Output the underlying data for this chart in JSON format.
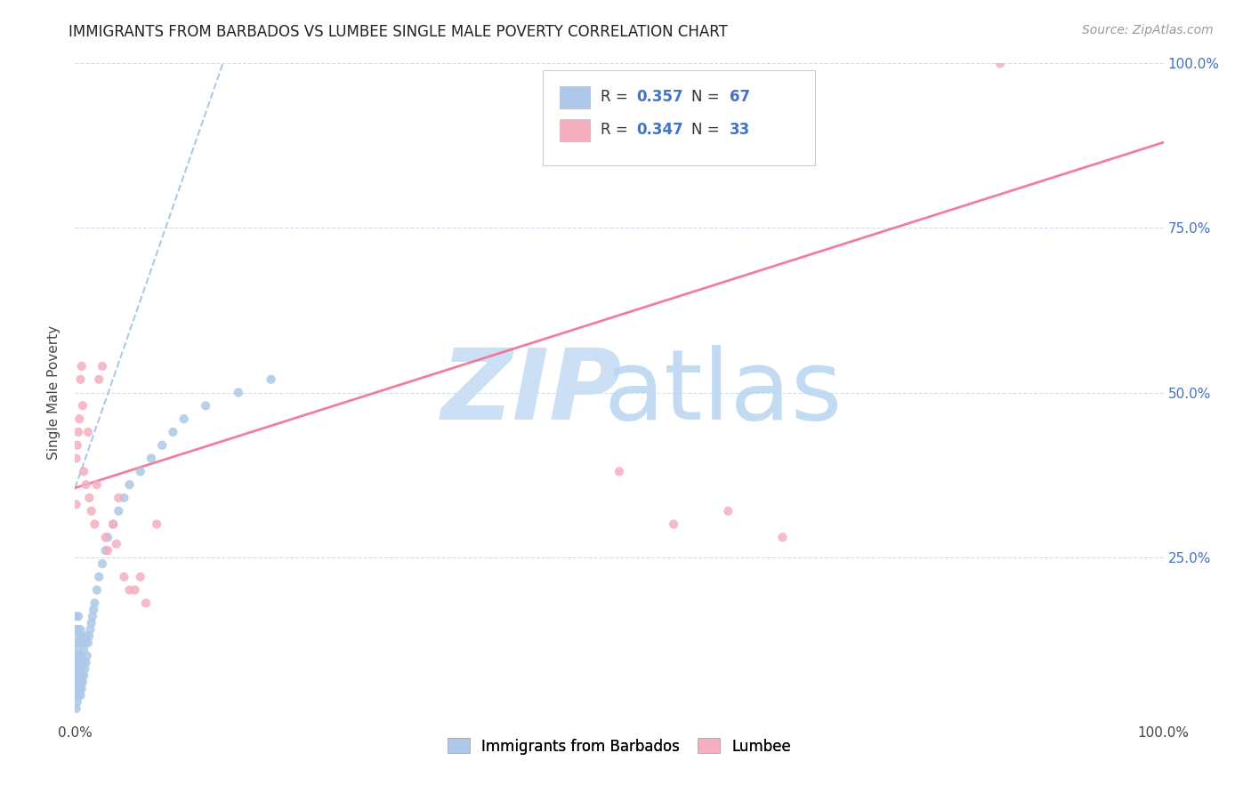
{
  "title": "IMMIGRANTS FROM BARBADOS VS LUMBEE SINGLE MALE POVERTY CORRELATION CHART",
  "source": "Source: ZipAtlas.com",
  "ylabel": "Single Male Poverty",
  "legend_blue_label": "Immigrants from Barbados",
  "legend_pink_label": "Lumbee",
  "R_blue": 0.357,
  "N_blue": 67,
  "R_pink": 0.347,
  "N_pink": 33,
  "blue_color": "#adc8e8",
  "pink_color": "#f5afc0",
  "blue_line_color": "#90b8de",
  "pink_line_color": "#f07090",
  "watermark_zip_color": "#cce0f5",
  "watermark_atlas_color": "#b8d5f0",
  "blue_points_x": [
    0.001,
    0.001,
    0.001,
    0.001,
    0.001,
    0.001,
    0.001,
    0.001,
    0.002,
    0.002,
    0.002,
    0.002,
    0.002,
    0.002,
    0.003,
    0.003,
    0.003,
    0.003,
    0.003,
    0.003,
    0.004,
    0.004,
    0.004,
    0.004,
    0.005,
    0.005,
    0.005,
    0.005,
    0.005,
    0.006,
    0.006,
    0.006,
    0.006,
    0.007,
    0.007,
    0.007,
    0.008,
    0.008,
    0.009,
    0.009,
    0.01,
    0.01,
    0.011,
    0.012,
    0.013,
    0.014,
    0.015,
    0.016,
    0.017,
    0.018,
    0.02,
    0.022,
    0.025,
    0.028,
    0.03,
    0.035,
    0.04,
    0.045,
    0.05,
    0.06,
    0.07,
    0.08,
    0.09,
    0.1,
    0.12,
    0.15,
    0.18
  ],
  "blue_points_y": [
    0.02,
    0.04,
    0.06,
    0.08,
    0.1,
    0.12,
    0.14,
    0.16,
    0.03,
    0.05,
    0.07,
    0.09,
    0.11,
    0.14,
    0.04,
    0.06,
    0.08,
    0.1,
    0.13,
    0.16,
    0.05,
    0.07,
    0.09,
    0.12,
    0.04,
    0.06,
    0.08,
    0.1,
    0.14,
    0.05,
    0.07,
    0.1,
    0.13,
    0.06,
    0.09,
    0.12,
    0.07,
    0.11,
    0.08,
    0.12,
    0.09,
    0.13,
    0.1,
    0.12,
    0.13,
    0.14,
    0.15,
    0.16,
    0.17,
    0.18,
    0.2,
    0.22,
    0.24,
    0.26,
    0.28,
    0.3,
    0.32,
    0.34,
    0.36,
    0.38,
    0.4,
    0.42,
    0.44,
    0.46,
    0.48,
    0.5,
    0.52
  ],
  "pink_points_x": [
    0.001,
    0.001,
    0.002,
    0.003,
    0.004,
    0.005,
    0.006,
    0.007,
    0.008,
    0.01,
    0.012,
    0.013,
    0.015,
    0.018,
    0.02,
    0.022,
    0.025,
    0.028,
    0.03,
    0.035,
    0.038,
    0.04,
    0.045,
    0.05,
    0.055,
    0.06,
    0.065,
    0.075,
    0.5,
    0.55,
    0.6,
    0.65,
    0.85
  ],
  "pink_points_y": [
    0.33,
    0.4,
    0.42,
    0.44,
    0.46,
    0.52,
    0.54,
    0.48,
    0.38,
    0.36,
    0.44,
    0.34,
    0.32,
    0.3,
    0.36,
    0.52,
    0.54,
    0.28,
    0.26,
    0.3,
    0.27,
    0.34,
    0.22,
    0.2,
    0.2,
    0.22,
    0.18,
    0.3,
    0.38,
    0.3,
    0.32,
    0.28,
    1.0
  ],
  "blue_trendline_x": [
    0.0,
    0.14
  ],
  "blue_trendline_y": [
    0.355,
    1.02
  ],
  "pink_trendline_x": [
    0.0,
    1.0
  ],
  "pink_trendline_y": [
    0.355,
    0.88
  ],
  "xlim": [
    0.0,
    1.0
  ],
  "ylim": [
    0.0,
    1.0
  ],
  "ytick_positions": [
    0.0,
    0.25,
    0.5,
    0.75,
    1.0
  ],
  "right_ytick_positions": [
    0.25,
    0.5,
    0.75,
    1.0
  ],
  "right_ytick_labels": [
    "25.0%",
    "50.0%",
    "75.0%",
    "100.0%"
  ]
}
